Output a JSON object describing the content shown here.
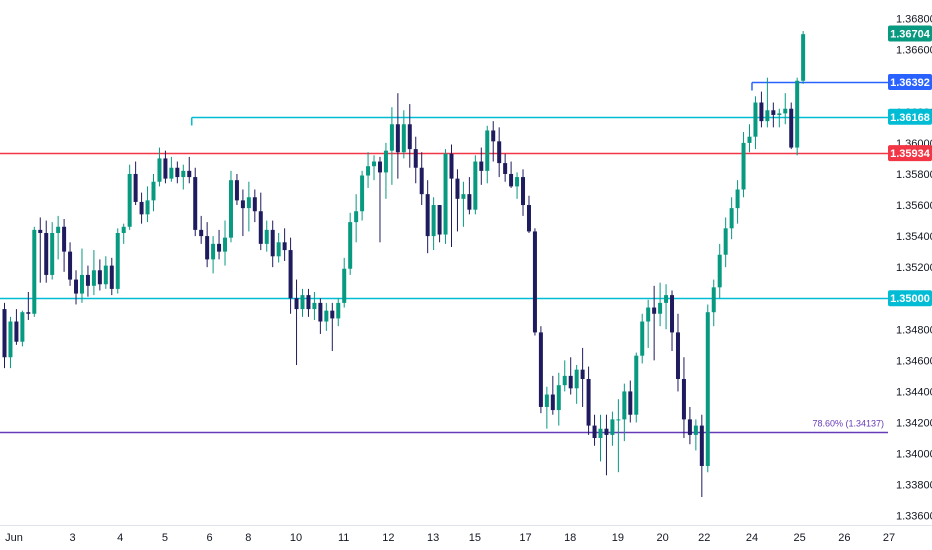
{
  "chart_data": {
    "type": "candlestick",
    "colors": {
      "up": "#089981",
      "down": "#1e1b5e",
      "background": "#ffffff",
      "axis_text": "#131722"
    },
    "y_axis": {
      "ticks": [
        1.336,
        1.338,
        1.34,
        1.342,
        1.344,
        1.346,
        1.348,
        1.35,
        1.352,
        1.354,
        1.356,
        1.358,
        1.36,
        1.362,
        1.364,
        1.366,
        1.368
      ],
      "tick_labels": [
        "1.33600",
        "1.33800",
        "1.34000",
        "1.34200",
        "1.34400",
        "1.34600",
        "1.34800",
        "1.35000",
        "1.35200",
        "1.35400",
        "1.35600",
        "1.35800",
        "1.36000",
        "1.36200",
        "1.36400",
        "1.36600",
        "1.36800"
      ],
      "range": [
        1.3354,
        1.3692
      ]
    },
    "x_axis": {
      "labels": [
        {
          "text": "Jun",
          "bar": 0
        },
        {
          "text": "3",
          "bar": 11.5
        },
        {
          "text": "4",
          "bar": 19.5
        },
        {
          "text": "5",
          "bar": 27
        },
        {
          "text": "6",
          "bar": 34.5
        },
        {
          "text": "8",
          "bar": 41
        },
        {
          "text": "10",
          "bar": 49
        },
        {
          "text": "11",
          "bar": 57
        },
        {
          "text": "12",
          "bar": 64.5
        },
        {
          "text": "13",
          "bar": 72
        },
        {
          "text": "15",
          "bar": 79
        },
        {
          "text": "17",
          "bar": 87.5
        },
        {
          "text": "18",
          "bar": 95
        },
        {
          "text": "19",
          "bar": 103
        },
        {
          "text": "20",
          "bar": 110.5
        },
        {
          "text": "22",
          "bar": 117.5
        },
        {
          "text": "24",
          "bar": 125.5
        },
        {
          "text": "25",
          "bar": 133.5
        },
        {
          "text": "26",
          "bar": 141
        },
        {
          "text": "27",
          "bar": 148.5
        }
      ]
    },
    "candles": [
      [
        1.3493,
        1.3497,
        1.3455,
        1.3462
      ],
      [
        1.3462,
        1.3488,
        1.3455,
        1.3485
      ],
      [
        1.3485,
        1.3493,
        1.347,
        1.3472
      ],
      [
        1.3472,
        1.3492,
        1.3469,
        1.3491
      ],
      [
        1.3491,
        1.3504,
        1.3486,
        1.349
      ],
      [
        1.349,
        1.3546,
        1.3488,
        1.3544
      ],
      [
        1.3544,
        1.3552,
        1.351,
        1.3542
      ],
      [
        1.3542,
        1.355,
        1.351,
        1.3515
      ],
      [
        1.3515,
        1.3549,
        1.3512,
        1.3542
      ],
      [
        1.3542,
        1.3553,
        1.3525,
        1.3546
      ],
      [
        1.3546,
        1.3551,
        1.3517,
        1.353
      ],
      [
        1.353,
        1.3536,
        1.3508,
        1.3512
      ],
      [
        1.3512,
        1.3518,
        1.3496,
        1.3503
      ],
      [
        1.3503,
        1.3532,
        1.3497,
        1.3515
      ],
      [
        1.3515,
        1.3521,
        1.3501,
        1.3508
      ],
      [
        1.3508,
        1.3531,
        1.3502,
        1.3518
      ],
      [
        1.3518,
        1.3525,
        1.3505,
        1.3509
      ],
      [
        1.3509,
        1.3527,
        1.3506,
        1.3521
      ],
      [
        1.3521,
        1.3526,
        1.3502,
        1.3506
      ],
      [
        1.3506,
        1.3545,
        1.3503,
        1.3542
      ],
      [
        1.3542,
        1.3548,
        1.3535,
        1.3546
      ],
      [
        1.3546,
        1.3586,
        1.3544,
        1.358
      ],
      [
        1.358,
        1.3588,
        1.356,
        1.3562
      ],
      [
        1.3562,
        1.3568,
        1.3548,
        1.3554
      ],
      [
        1.3554,
        1.3572,
        1.3549,
        1.3563
      ],
      [
        1.3563,
        1.358,
        1.3556,
        1.3575
      ],
      [
        1.3575,
        1.3597,
        1.3572,
        1.359
      ],
      [
        1.359,
        1.3595,
        1.3574,
        1.3577
      ],
      [
        1.3577,
        1.3591,
        1.3575,
        1.3584
      ],
      [
        1.3584,
        1.3588,
        1.3574,
        1.3578
      ],
      [
        1.3578,
        1.3586,
        1.357,
        1.3582
      ],
      [
        1.3582,
        1.3591,
        1.3574,
        1.3578
      ],
      [
        1.3578,
        1.3584,
        1.354,
        1.3544
      ],
      [
        1.3544,
        1.3553,
        1.3535,
        1.354
      ],
      [
        1.354,
        1.3549,
        1.352,
        1.3525
      ],
      [
        1.3525,
        1.354,
        1.3516,
        1.3535
      ],
      [
        1.3535,
        1.3544,
        1.3525,
        1.353
      ],
      [
        1.353,
        1.355,
        1.3521,
        1.3539
      ],
      [
        1.3539,
        1.3582,
        1.3536,
        1.3576
      ],
      [
        1.3576,
        1.358,
        1.356,
        1.3563
      ],
      [
        1.3563,
        1.357,
        1.354,
        1.3558
      ],
      [
        1.3558,
        1.3575,
        1.3543,
        1.3565
      ],
      [
        1.3565,
        1.357,
        1.3549,
        1.3556
      ],
      [
        1.3556,
        1.3568,
        1.3531,
        1.3535
      ],
      [
        1.3535,
        1.355,
        1.353,
        1.3544
      ],
      [
        1.3544,
        1.355,
        1.352,
        1.3527
      ],
      [
        1.3527,
        1.3542,
        1.3523,
        1.3536
      ],
      [
        1.3536,
        1.3545,
        1.3524,
        1.3531
      ],
      [
        1.3531,
        1.3539,
        1.349,
        1.35
      ],
      [
        1.35,
        1.3512,
        1.3457,
        1.3493
      ],
      [
        1.3493,
        1.3506,
        1.3488,
        1.3502
      ],
      [
        1.3502,
        1.3506,
        1.3488,
        1.3493
      ],
      [
        1.3493,
        1.3504,
        1.3486,
        1.3497
      ],
      [
        1.3497,
        1.35,
        1.3477,
        1.3485
      ],
      [
        1.3485,
        1.3497,
        1.3479,
        1.3492
      ],
      [
        1.3492,
        1.3497,
        1.3466,
        1.3487
      ],
      [
        1.3487,
        1.35,
        1.3482,
        1.3497
      ],
      [
        1.3497,
        1.3526,
        1.3494,
        1.3519
      ],
      [
        1.3519,
        1.3555,
        1.3515,
        1.3549
      ],
      [
        1.3549,
        1.3567,
        1.3536,
        1.3556
      ],
      [
        1.3556,
        1.3582,
        1.355,
        1.3579
      ],
      [
        1.3579,
        1.3594,
        1.3571,
        1.3585
      ],
      [
        1.3585,
        1.3592,
        1.3576,
        1.3588
      ],
      [
        1.3588,
        1.3591,
        1.3536,
        1.3581
      ],
      [
        1.3581,
        1.36,
        1.3564,
        1.3595
      ],
      [
        1.3595,
        1.3623,
        1.3573,
        1.3612
      ],
      [
        1.3612,
        1.3632,
        1.3577,
        1.3594
      ],
      [
        1.3594,
        1.3621,
        1.359,
        1.3612
      ],
      [
        1.3612,
        1.3625,
        1.3584,
        1.3596
      ],
      [
        1.3596,
        1.3604,
        1.3574,
        1.3584
      ],
      [
        1.3584,
        1.3594,
        1.356,
        1.3567
      ],
      [
        1.3567,
        1.3576,
        1.3529,
        1.354
      ],
      [
        1.354,
        1.3565,
        1.3531,
        1.356
      ],
      [
        1.356,
        1.356,
        1.3536,
        1.3541
      ],
      [
        1.3541,
        1.3596,
        1.3535,
        1.3593
      ],
      [
        1.3593,
        1.3599,
        1.3533,
        1.3577
      ],
      [
        1.3577,
        1.3583,
        1.3543,
        1.3564
      ],
      [
        1.3564,
        1.3575,
        1.3546,
        1.3567
      ],
      [
        1.3567,
        1.3578,
        1.3554,
        1.3557
      ],
      [
        1.3557,
        1.3592,
        1.3554,
        1.3588
      ],
      [
        1.3588,
        1.3597,
        1.3573,
        1.3582
      ],
      [
        1.3582,
        1.3611,
        1.3574,
        1.3608
      ],
      [
        1.3608,
        1.3614,
        1.3588,
        1.3601
      ],
      [
        1.3601,
        1.361,
        1.3578,
        1.3587
      ],
      [
        1.3587,
        1.3593,
        1.3575,
        1.358
      ],
      [
        1.358,
        1.3588,
        1.3571,
        1.3572
      ],
      [
        1.3572,
        1.3581,
        1.3564,
        1.3578
      ],
      [
        1.3578,
        1.3583,
        1.3553,
        1.356
      ],
      [
        1.356,
        1.3566,
        1.3542,
        1.3543
      ],
      [
        1.3543,
        1.3545,
        1.3476,
        1.3478
      ],
      [
        1.3478,
        1.3482,
        1.3426,
        1.343
      ],
      [
        1.343,
        1.3443,
        1.3416,
        1.3438
      ],
      [
        1.3438,
        1.345,
        1.3425,
        1.3428
      ],
      [
        1.3428,
        1.3452,
        1.3418,
        1.3444
      ],
      [
        1.3444,
        1.346,
        1.344,
        1.345
      ],
      [
        1.345,
        1.3462,
        1.3438,
        1.3442
      ],
      [
        1.3442,
        1.3457,
        1.3432,
        1.3454
      ],
      [
        1.3454,
        1.3468,
        1.343,
        1.3448
      ],
      [
        1.3448,
        1.3456,
        1.3412,
        1.3418
      ],
      [
        1.3418,
        1.3425,
        1.3405,
        1.341
      ],
      [
        1.341,
        1.3425,
        1.3395,
        1.3416
      ],
      [
        1.3416,
        1.3425,
        1.3386,
        1.3412
      ],
      [
        1.3412,
        1.3427,
        1.3405,
        1.3422
      ],
      [
        1.3422,
        1.3435,
        1.3388,
        1.3422
      ],
      [
        1.3422,
        1.3445,
        1.3408,
        1.344
      ],
      [
        1.344,
        1.3447,
        1.342,
        1.3425
      ],
      [
        1.3425,
        1.3465,
        1.342,
        1.3463
      ],
      [
        1.3463,
        1.349,
        1.3458,
        1.3485
      ],
      [
        1.3485,
        1.3499,
        1.3468,
        1.3494
      ],
      [
        1.3494,
        1.3508,
        1.346,
        1.349
      ],
      [
        1.349,
        1.351,
        1.3482,
        1.3497
      ],
      [
        1.3497,
        1.3509,
        1.348,
        1.3502
      ],
      [
        1.3502,
        1.3505,
        1.3466,
        1.3478
      ],
      [
        1.3478,
        1.349,
        1.344,
        1.3448
      ],
      [
        1.3448,
        1.3462,
        1.341,
        1.3422
      ],
      [
        1.3422,
        1.343,
        1.3406,
        1.3412
      ],
      [
        1.3412,
        1.3422,
        1.3402,
        1.3418
      ],
      [
        1.3418,
        1.3425,
        1.3372,
        1.3392
      ],
      [
        1.3392,
        1.3496,
        1.3388,
        1.3491
      ],
      [
        1.3491,
        1.3512,
        1.3482,
        1.3507
      ],
      [
        1.3507,
        1.3535,
        1.35,
        1.3528
      ],
      [
        1.3528,
        1.3552,
        1.352,
        1.3545
      ],
      [
        1.3545,
        1.3565,
        1.3538,
        1.3558
      ],
      [
        1.3558,
        1.3576,
        1.3548,
        1.357
      ],
      [
        1.357,
        1.3607,
        1.3565,
        1.36
      ],
      [
        1.36,
        1.3612,
        1.3594,
        1.3604
      ],
      [
        1.3604,
        1.363,
        1.3596,
        1.3626
      ],
      [
        1.3626,
        1.3633,
        1.361,
        1.3614
      ],
      [
        1.3614,
        1.3642,
        1.361,
        1.3621
      ],
      [
        1.3621,
        1.3626,
        1.361,
        1.3618
      ],
      [
        1.3618,
        1.3622,
        1.361,
        1.3619
      ],
      [
        1.3619,
        1.3632,
        1.3612,
        1.3622
      ],
      [
        1.3622,
        1.3626,
        1.3596,
        1.3597
      ],
      [
        1.3597,
        1.3642,
        1.3592,
        1.364
      ],
      [
        1.364,
        1.3672,
        1.3638,
        1.367
      ]
    ],
    "horizontal_lines": [
      {
        "price": 1.36392,
        "label": "1.36392",
        "color": "#2962ff",
        "start_bar": 125.5
      },
      {
        "price": 1.36168,
        "label": "1.36168",
        "color": "#00bcd4",
        "start_bar": 31.5
      },
      {
        "price": 1.35934,
        "label": "1.35934",
        "color": "#f23645",
        "start_bar": 0
      },
      {
        "price": 1.35,
        "label": "1.35000",
        "color": "#00bcd4",
        "start_bar": 0
      },
      {
        "price": 1.34137,
        "label": "",
        "color": "#673ab7",
        "start_bar": 0,
        "annotation": "78.60% (1.34137)"
      }
    ],
    "last_price": {
      "price": 1.36704,
      "label": "1.36704",
      "color": "#089981"
    }
  }
}
